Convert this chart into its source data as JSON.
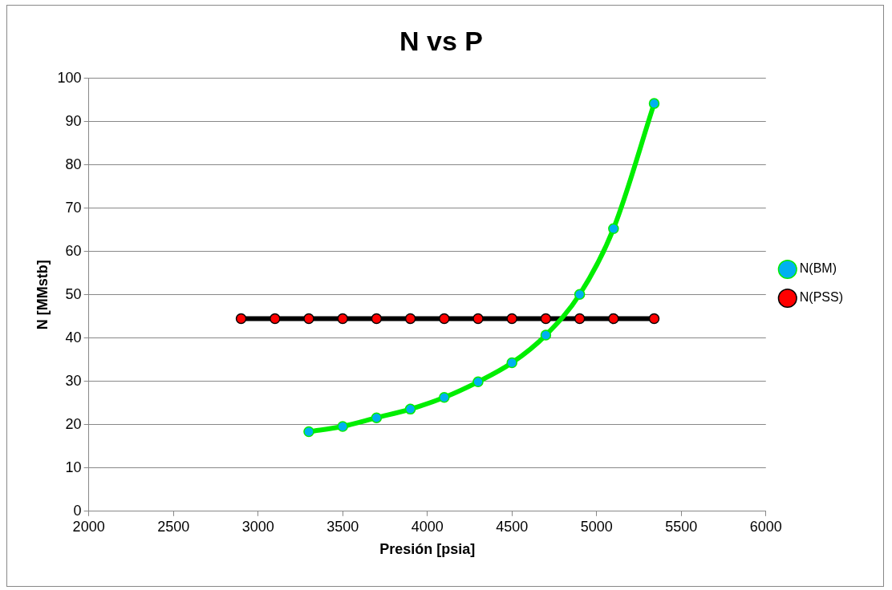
{
  "chart_data": {
    "type": "line",
    "title": "N vs P",
    "xlabel": "Presión [psia]",
    "ylabel": "N [MMstb]",
    "xlim": [
      2000,
      6000
    ],
    "xticks": [
      2000,
      2500,
      3000,
      3500,
      4000,
      4500,
      5000,
      5500,
      6000
    ],
    "ylim": [
      0,
      100
    ],
    "yticks": [
      0,
      10,
      20,
      30,
      40,
      50,
      60,
      70,
      80,
      90,
      100
    ],
    "grid": "y",
    "legend": "right",
    "marker": "circle",
    "line_style": "solid",
    "series": [
      {
        "name": "N(BM)",
        "color": "#00ee00",
        "colors": [
          "#00b0f0",
          "#00b0f0",
          "#00b0f0",
          "#00b0f0",
          "#00b0f0",
          "#00b0f0",
          "#00b0f0",
          "#00b0f0",
          "#00b0f0",
          "#00b0f0",
          "#00b0f0"
        ],
        "x": [
          3300,
          3500,
          3700,
          3900,
          4100,
          4300,
          4500,
          4700,
          4900,
          5100,
          5340
        ],
        "values": [
          18.4,
          19.6,
          21.6,
          23.6,
          26.3,
          29.9,
          34.3,
          40.7,
          50.1,
          65.3,
          94.2
        ]
      },
      {
        "name": "N(PSS)",
        "color": "#000000",
        "colors": [
          "#ff0000",
          "#ff0000",
          "#ff0000",
          "#ff0000",
          "#ff0000",
          "#ff0000",
          "#ff0000",
          "#ff0000",
          "#ff0000",
          "#ff0000",
          "#ff0000",
          "#ff0000",
          "#ff0000"
        ],
        "x": [
          2900,
          3100,
          3300,
          3500,
          3700,
          3900,
          4100,
          4300,
          4500,
          4700,
          4900,
          5100,
          5340
        ],
        "values": [
          44.5,
          44.5,
          44.5,
          44.5,
          44.5,
          44.5,
          44.5,
          44.5,
          44.5,
          44.5,
          44.5,
          44.5,
          44.5
        ]
      }
    ]
  }
}
